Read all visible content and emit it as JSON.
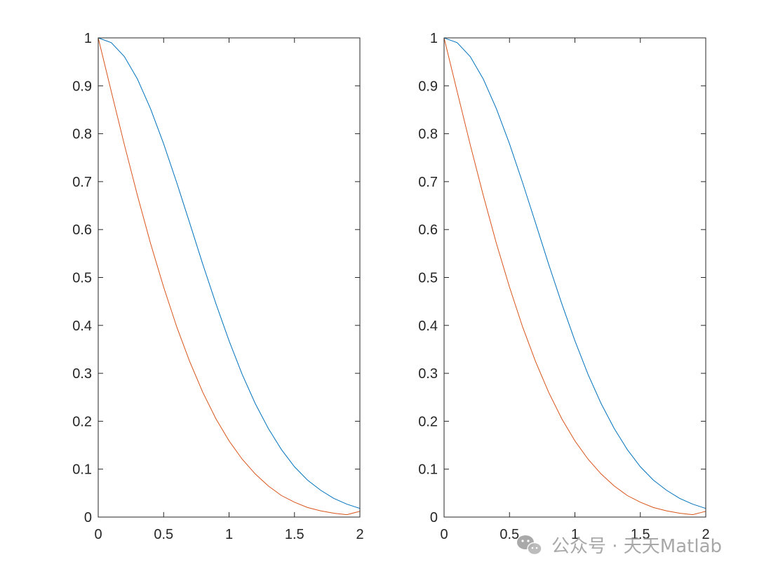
{
  "chart_data": [
    {
      "type": "line",
      "title": "",
      "xlabel": "",
      "ylabel": "",
      "xlim": [
        0,
        2
      ],
      "ylim": [
        0,
        1
      ],
      "grid": false,
      "x_ticks": [
        "0",
        "0.5",
        "1",
        "1.5",
        "2"
      ],
      "y_ticks": [
        "0",
        "0.1",
        "0.2",
        "0.3",
        "0.4",
        "0.5",
        "0.6",
        "0.7",
        "0.8",
        "0.9",
        "1"
      ],
      "series": [
        {
          "color": "#0072BD",
          "x": [
            0,
            0.1,
            0.2,
            0.3,
            0.4,
            0.5,
            0.6,
            0.7,
            0.8,
            0.9,
            1.0,
            1.1,
            1.2,
            1.3,
            1.4,
            1.5,
            1.6,
            1.7,
            1.8,
            1.9,
            2.0
          ],
          "y": [
            1.0,
            0.99,
            0.961,
            0.914,
            0.852,
            0.779,
            0.698,
            0.613,
            0.527,
            0.445,
            0.368,
            0.298,
            0.237,
            0.185,
            0.141,
            0.105,
            0.077,
            0.056,
            0.039,
            0.027,
            0.018
          ]
        },
        {
          "color": "#D95319",
          "x": [
            0,
            0.1,
            0.2,
            0.3,
            0.4,
            0.5,
            0.6,
            0.7,
            0.8,
            0.9,
            1.0,
            1.1,
            1.2,
            1.3,
            1.4,
            1.5,
            1.6,
            1.7,
            1.8,
            1.9,
            2.0
          ],
          "y": [
            1.0,
            0.888,
            0.777,
            0.671,
            0.571,
            0.48,
            0.397,
            0.324,
            0.26,
            0.205,
            0.159,
            0.121,
            0.09,
            0.065,
            0.045,
            0.031,
            0.02,
            0.013,
            0.008,
            0.005,
            0.012
          ]
        }
      ]
    },
    {
      "type": "line",
      "title": "",
      "xlabel": "",
      "ylabel": "",
      "xlim": [
        0,
        2
      ],
      "ylim": [
        0,
        1
      ],
      "grid": false,
      "x_ticks": [
        "0",
        "0.5",
        "1",
        "1.5",
        "2"
      ],
      "y_ticks": [
        "0",
        "0.1",
        "0.2",
        "0.3",
        "0.4",
        "0.5",
        "0.6",
        "0.7",
        "0.8",
        "0.9",
        "1"
      ],
      "series": [
        {
          "color": "#0072BD",
          "x": [
            0,
            0.1,
            0.2,
            0.3,
            0.4,
            0.5,
            0.6,
            0.7,
            0.8,
            0.9,
            1.0,
            1.1,
            1.2,
            1.3,
            1.4,
            1.5,
            1.6,
            1.7,
            1.8,
            1.9,
            2.0
          ],
          "y": [
            1.0,
            0.99,
            0.961,
            0.914,
            0.852,
            0.779,
            0.698,
            0.613,
            0.527,
            0.445,
            0.368,
            0.298,
            0.237,
            0.185,
            0.141,
            0.105,
            0.077,
            0.056,
            0.039,
            0.027,
            0.018
          ]
        },
        {
          "color": "#D95319",
          "x": [
            0,
            0.1,
            0.2,
            0.3,
            0.4,
            0.5,
            0.6,
            0.7,
            0.8,
            0.9,
            1.0,
            1.1,
            1.2,
            1.3,
            1.4,
            1.5,
            1.6,
            1.7,
            1.8,
            1.9,
            2.0
          ],
          "y": [
            1.0,
            0.888,
            0.777,
            0.671,
            0.571,
            0.48,
            0.397,
            0.324,
            0.26,
            0.205,
            0.159,
            0.121,
            0.09,
            0.065,
            0.045,
            0.031,
            0.02,
            0.013,
            0.008,
            0.005,
            0.012
          ]
        }
      ]
    }
  ],
  "watermark": {
    "text": "公众号 · 天天Matlab",
    "icon": "wechat-icon"
  }
}
